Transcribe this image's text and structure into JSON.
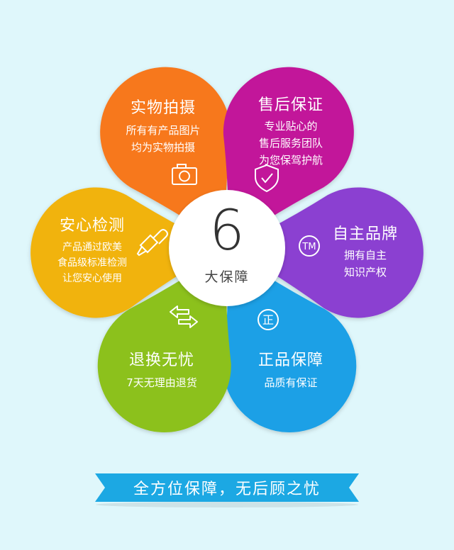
{
  "center": {
    "number": "6",
    "label": "大保障"
  },
  "petals": {
    "photo": {
      "title": "实物拍摄",
      "lines": [
        "所有有产品图片",
        "均为实物拍摄"
      ],
      "color": "#f7781f",
      "icon": "camera-icon"
    },
    "service": {
      "title": "售后保证",
      "lines": [
        "专业贴心的",
        "售后服务团队",
        "为您保驾护航"
      ],
      "color": "#c2179a",
      "icon": "shield-check-icon"
    },
    "brand": {
      "title": "自主品牌",
      "lines": [
        "拥有自主",
        "知识产权"
      ],
      "color": "#8b3fd1",
      "icon": "tm-icon",
      "icon_text": "TM"
    },
    "genuine": {
      "title": "正品保障",
      "lines": [
        "品质有保证"
      ],
      "color": "#1aa0e6",
      "icon": "zheng-icon",
      "icon_text": "正"
    },
    "return": {
      "title": "退换无忧",
      "lines": [
        "7天无理由退货"
      ],
      "color": "#8cc11c",
      "icon": "exchange-arrows-icon"
    },
    "safe": {
      "title": "安心检测",
      "lines": [
        "产品通过欧美",
        "食品级标准检测",
        "让您安心使用"
      ],
      "color": "#f1b30c",
      "icon": "dropper-icon"
    }
  },
  "banner": {
    "text": "全方位保障，无后顾之忧",
    "color": "#1ca8e3"
  }
}
